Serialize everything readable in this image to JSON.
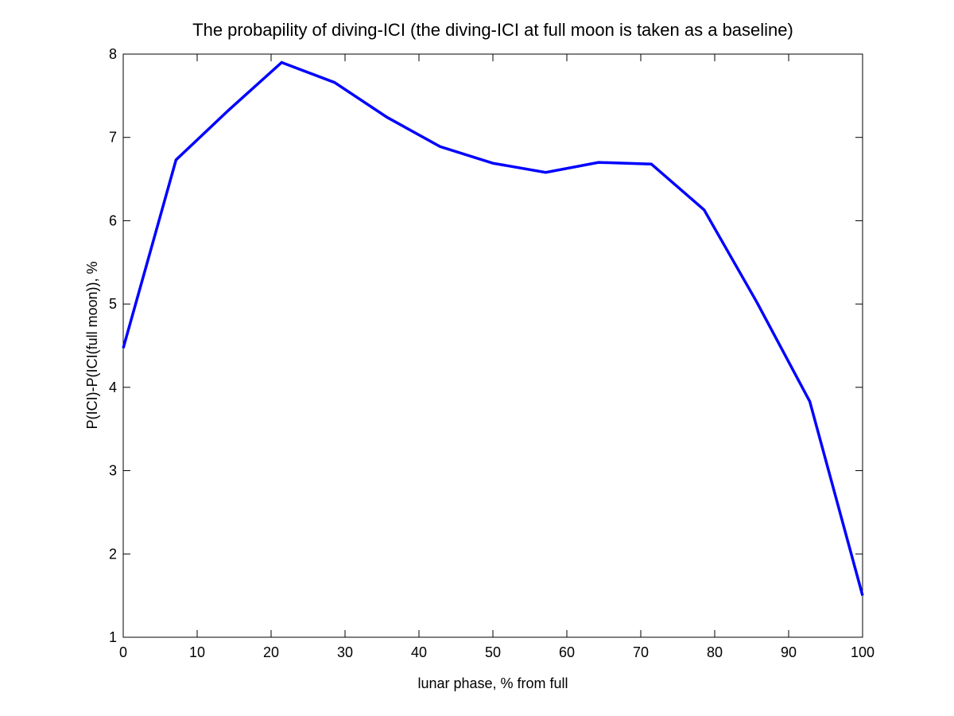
{
  "chart_data": {
    "type": "line",
    "title": "The probapility of diving-ICI (the diving-ICI at full moon is taken as a baseline)",
    "xlabel": "lunar phase, % from full",
    "ylabel": "P(ICI)-P(ICI(full moon)), %",
    "xlim": [
      0,
      100
    ],
    "ylim": [
      1,
      8
    ],
    "xticks": [
      0,
      10,
      20,
      30,
      40,
      50,
      60,
      70,
      80,
      90,
      100
    ],
    "yticks": [
      1,
      2,
      3,
      4,
      5,
      6,
      7,
      8
    ],
    "grid": false,
    "series": [
      {
        "name": "diving-ICI",
        "color": "#0000ff",
        "x": [
          0,
          7.14,
          14.29,
          21.43,
          28.57,
          35.71,
          42.86,
          50,
          57.14,
          64.29,
          71.43,
          78.57,
          85.71,
          92.86,
          100
        ],
        "y": [
          4.47,
          6.73,
          7.33,
          7.9,
          7.66,
          7.24,
          6.89,
          6.69,
          6.58,
          6.7,
          6.68,
          6.13,
          5.02,
          3.83,
          1.5
        ]
      }
    ]
  }
}
